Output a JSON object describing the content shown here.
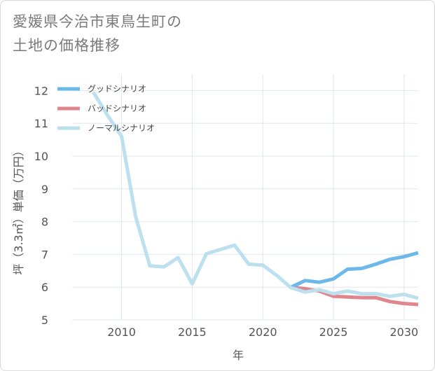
{
  "title": {
    "line1": "愛媛県今治市東鳥生町の",
    "line2": "土地の価格推移"
  },
  "chart_data": {
    "type": "line",
    "xlabel": "年",
    "ylabel": "坪（3.3㎡）単価（万円）",
    "xlim": [
      2006.5,
      2031
    ],
    "ylim": [
      5,
      12.5
    ],
    "xticks": [
      2010,
      2015,
      2020,
      2025,
      2030
    ],
    "yticks": [
      5,
      6,
      7,
      8,
      9,
      10,
      11,
      12
    ],
    "grid": true,
    "legend_position": "top-left",
    "series": [
      {
        "name": "グッドシナリオ",
        "color": "#6cb8ea",
        "x": [
          2022,
          2023,
          2024,
          2025,
          2026,
          2027,
          2028,
          2029,
          2030,
          2031
        ],
        "y": [
          6.0,
          6.2,
          6.15,
          6.25,
          6.55,
          6.57,
          6.7,
          6.85,
          6.93,
          7.05
        ]
      },
      {
        "name": "バッドシナリオ",
        "color": "#e0868e",
        "x": [
          2022,
          2023,
          2024,
          2025,
          2026,
          2027,
          2028,
          2029,
          2030,
          2031
        ],
        "y": [
          6.0,
          5.95,
          5.88,
          5.72,
          5.7,
          5.68,
          5.68,
          5.56,
          5.5,
          5.47
        ]
      },
      {
        "name": "ノーマルシナリオ",
        "color": "#bde0ee",
        "x": [
          2008,
          2009,
          2010,
          2011,
          2012,
          2013,
          2014,
          2015,
          2016,
          2017,
          2018,
          2019,
          2020,
          2021,
          2022,
          2023,
          2024,
          2025,
          2026,
          2027,
          2028,
          2029,
          2030,
          2031
        ],
        "y": [
          11.95,
          11.25,
          10.6,
          8.15,
          6.65,
          6.62,
          6.9,
          6.1,
          7.02,
          7.15,
          7.28,
          6.7,
          6.67,
          6.35,
          5.98,
          5.85,
          5.92,
          5.8,
          5.88,
          5.8,
          5.8,
          5.72,
          5.78,
          5.66
        ]
      }
    ]
  }
}
